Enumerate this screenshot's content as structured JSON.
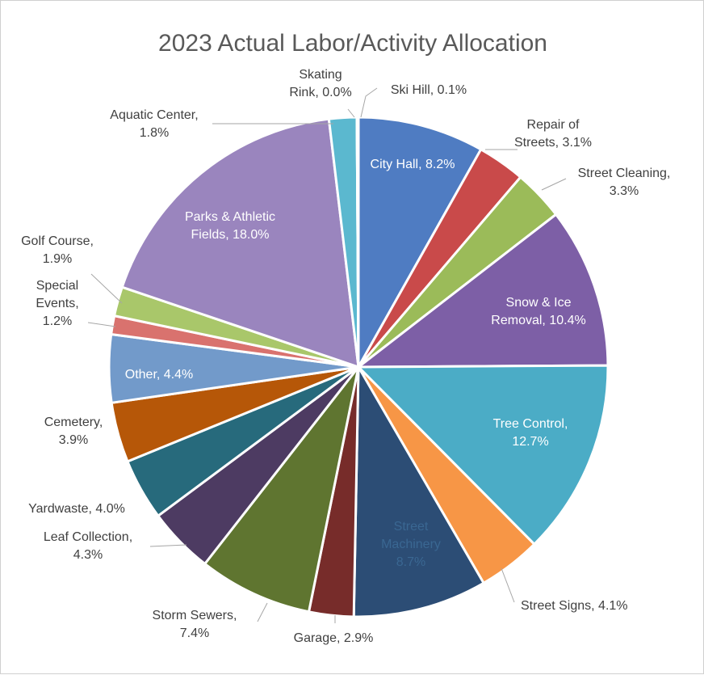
{
  "chart_data": {
    "type": "pie",
    "title": "2023 Actual Labor/Activity Allocation",
    "slices": [
      {
        "label": "City Hall",
        "value": 8.2,
        "display": "8.2%",
        "color": "#4F7CC2"
      },
      {
        "label": "Repair of Streets",
        "value": 3.1,
        "display": "3.1%",
        "color": "#C94A4A"
      },
      {
        "label": "Street Cleaning",
        "value": 3.3,
        "display": "3.3%",
        "color": "#9BBB59"
      },
      {
        "label": "Snow & Ice Removal",
        "value": 10.4,
        "display": "10.4%",
        "color": "#7D5FA6"
      },
      {
        "label": "Tree Control",
        "value": 12.7,
        "display": "12.7%",
        "color": "#4BACC6"
      },
      {
        "label": "Street Signs",
        "value": 4.1,
        "display": "4.1%",
        "color": "#F79646"
      },
      {
        "label": "Street Machinery",
        "value": 8.7,
        "display": "8.7%",
        "color": "#2C4D75"
      },
      {
        "label": "Garage",
        "value": 2.9,
        "display": "2.9%",
        "color": "#772C2A"
      },
      {
        "label": "Storm Sewers",
        "value": 7.4,
        "display": "7.4%",
        "color": "#5F7530"
      },
      {
        "label": "Leaf Collection",
        "value": 4.3,
        "display": "4.3%",
        "color": "#4D3B62"
      },
      {
        "label": "Yardwaste",
        "value": 4.0,
        "display": "4.0%",
        "color": "#276A7C"
      },
      {
        "label": "Cemetery",
        "value": 3.9,
        "display": "3.9%",
        "color": "#B65708"
      },
      {
        "label": "Other",
        "value": 4.4,
        "display": "4.4%",
        "color": "#729ACA"
      },
      {
        "label": "Special Events",
        "value": 1.2,
        "display": "1.2%",
        "color": "#D9726E"
      },
      {
        "label": "Golf Course",
        "value": 1.9,
        "display": "1.9%",
        "color": "#A9C76A"
      },
      {
        "label": "Parks & Athletic Fields",
        "value": 18.0,
        "display": "18.0%",
        "color": "#9A85BE"
      },
      {
        "label": "Aquatic Center",
        "value": 1.8,
        "display": "1.8%",
        "color": "#5BB8CF"
      },
      {
        "label": "Skating Rink",
        "value": 0.0,
        "display": "0.0%",
        "color": "#FAA34F"
      },
      {
        "label": "Ski Hill",
        "value": 0.1,
        "display": "0.1%",
        "color": "#2F5E8C"
      }
    ]
  }
}
